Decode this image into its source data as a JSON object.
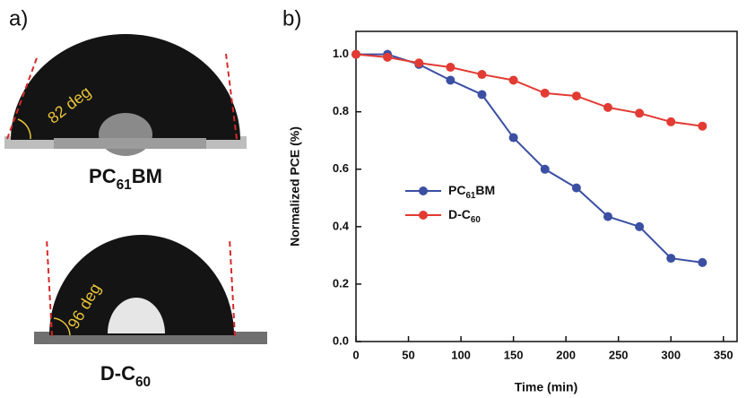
{
  "panel_a": {
    "label": "a)",
    "drops": [
      {
        "angle": "82 deg",
        "caption": "PC61BM"
      },
      {
        "angle": "96 deg",
        "caption": "D-C60"
      }
    ]
  },
  "chart_data": {
    "type": "line",
    "panel_label": "b)",
    "x_label": "Time (min)",
    "y_label": "Normalized PCE (%)",
    "x": [
      0,
      30,
      60,
      90,
      120,
      150,
      180,
      210,
      240,
      270,
      300,
      330
    ],
    "series": [
      {
        "name": "PC61BM",
        "color": "#3b4fa3",
        "values": [
          1.0,
          1.0,
          0.965,
          0.91,
          0.86,
          0.71,
          0.6,
          0.535,
          0.435,
          0.4,
          0.29,
          0.275
        ]
      },
      {
        "name": "D-C60",
        "color": "#e23b33",
        "values": [
          1.0,
          0.99,
          0.97,
          0.955,
          0.93,
          0.91,
          0.865,
          0.855,
          0.815,
          0.795,
          0.765,
          0.75
        ]
      }
    ],
    "xlim": [
      0,
      363
    ],
    "xticks": [
      0,
      50,
      100,
      150,
      200,
      250,
      300,
      350
    ],
    "ylim": [
      0,
      1.08
    ],
    "yticks": [
      {
        "value": 0,
        "label": "0.0"
      },
      0.2,
      0.4,
      0.6,
      0.8,
      {
        "value": 1,
        "label": "1.0"
      }
    ],
    "legend": "center-left"
  }
}
